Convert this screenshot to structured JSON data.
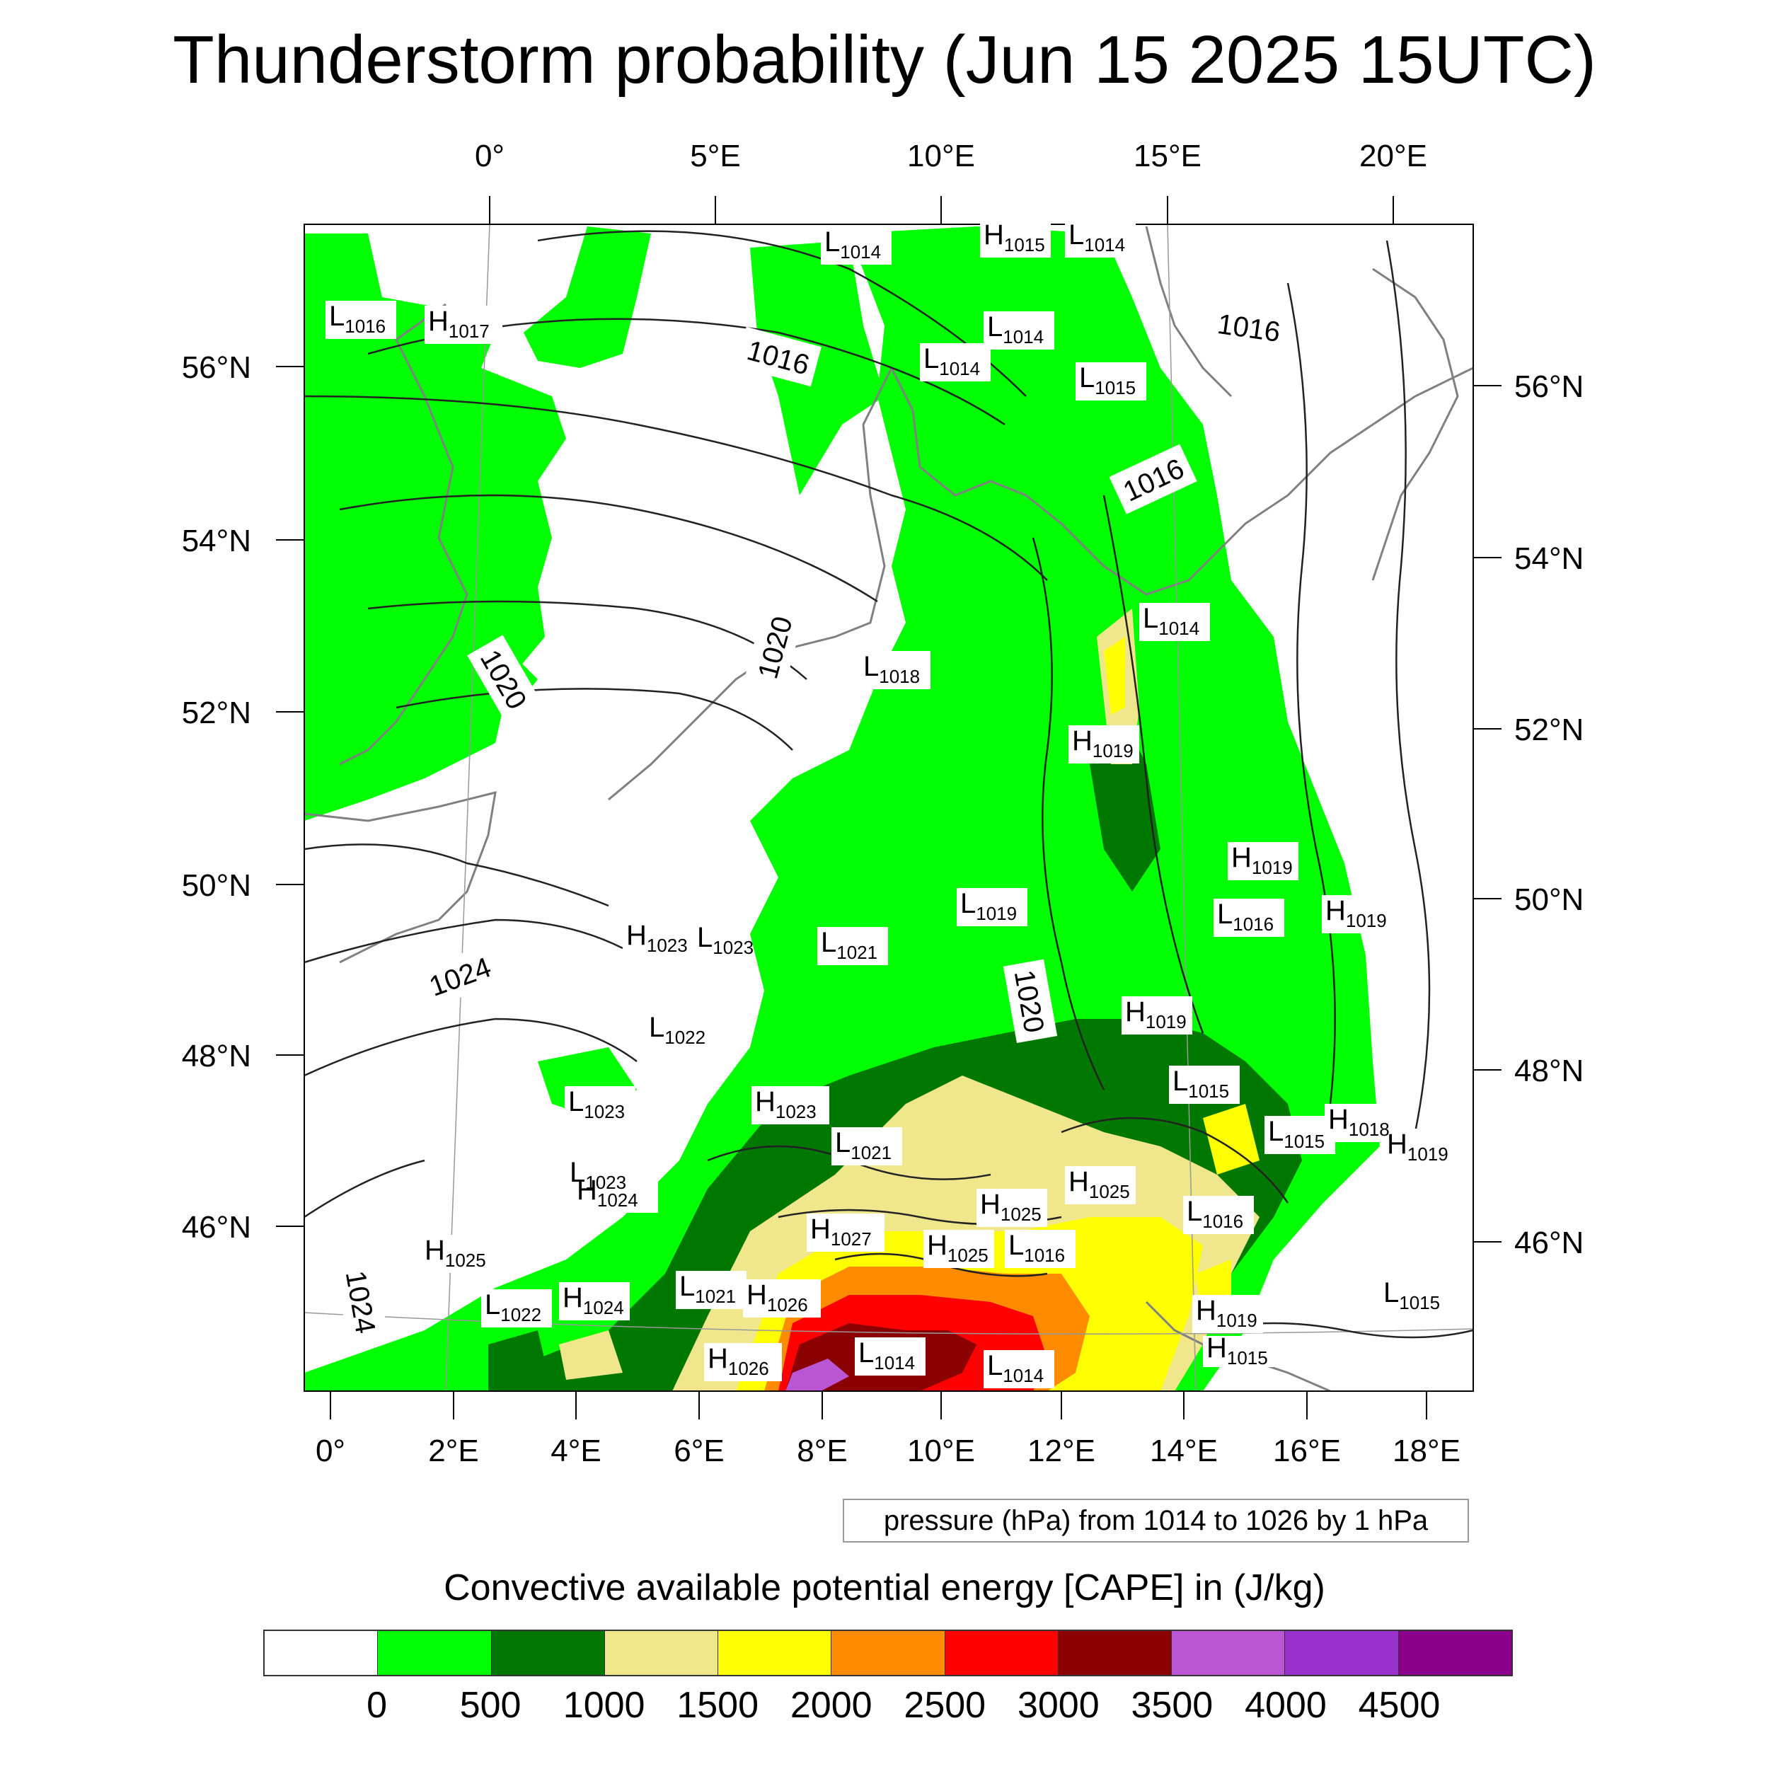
{
  "title": "Thunderstorm probability (Jun 15 2025 15UTC)",
  "axes": {
    "top_lon": [
      "0°",
      "5°E",
      "10°E",
      "15°E",
      "20°E"
    ],
    "bottom_lon": [
      "0°",
      "2°E",
      "4°E",
      "6°E",
      "8°E",
      "10°E",
      "12°E",
      "14°E",
      "16°E",
      "18°E"
    ],
    "left_lat": [
      "56°N",
      "54°N",
      "52°N",
      "50°N",
      "48°N",
      "46°N"
    ],
    "right_lat": [
      "56°N",
      "54°N",
      "52°N",
      "50°N",
      "48°N",
      "46°N"
    ]
  },
  "isobar_labels": [
    "1016",
    "1016",
    "1016",
    "1020",
    "1020",
    "1020",
    "1024",
    "1024"
  ],
  "pressure_centers": [
    {
      "type": "L",
      "value": "1014"
    },
    {
      "type": "H",
      "value": "1015"
    },
    {
      "type": "L",
      "value": "1014"
    },
    {
      "type": "L",
      "value": "1016"
    },
    {
      "type": "H",
      "value": "1017"
    },
    {
      "type": "L",
      "value": "1014"
    },
    {
      "type": "L",
      "value": "1014"
    },
    {
      "type": "L",
      "value": "1015"
    },
    {
      "type": "L",
      "value": "1014"
    },
    {
      "type": "L",
      "value": "1018"
    },
    {
      "type": "H",
      "value": "1019"
    },
    {
      "type": "H",
      "value": "1019"
    },
    {
      "type": "L",
      "value": "1016"
    },
    {
      "type": "H",
      "value": "1019"
    },
    {
      "type": "L",
      "value": "1019"
    },
    {
      "type": "H",
      "value": "1023"
    },
    {
      "type": "L",
      "value": "1023"
    },
    {
      "type": "L",
      "value": "1021"
    },
    {
      "type": "L",
      "value": "1022"
    },
    {
      "type": "H",
      "value": "1019"
    },
    {
      "type": "L",
      "value": "1015"
    },
    {
      "type": "L",
      "value": "1023"
    },
    {
      "type": "H",
      "value": "1023"
    },
    {
      "type": "L",
      "value": "1021"
    },
    {
      "type": "L",
      "value": "1023"
    },
    {
      "type": "H",
      "value": "1024"
    },
    {
      "type": "H",
      "value": "1025"
    },
    {
      "type": "H",
      "value": "1025"
    },
    {
      "type": "L",
      "value": "1016"
    },
    {
      "type": "H",
      "value": "1027"
    },
    {
      "type": "H",
      "value": "1025"
    },
    {
      "type": "L",
      "value": "1016"
    },
    {
      "type": "H",
      "value": "1025"
    },
    {
      "type": "L",
      "value": "1022"
    },
    {
      "type": "H",
      "value": "1024"
    },
    {
      "type": "L",
      "value": "1021"
    },
    {
      "type": "H",
      "value": "1026"
    },
    {
      "type": "H",
      "value": "1026"
    },
    {
      "type": "L",
      "value": "1014"
    },
    {
      "type": "L",
      "value": "1014"
    },
    {
      "type": "H",
      "value": "1019"
    },
    {
      "type": "L",
      "value": "1015"
    },
    {
      "type": "H",
      "value": "1019"
    },
    {
      "type": "H",
      "value": "1018"
    },
    {
      "type": "L",
      "value": "1015"
    },
    {
      "type": "H",
      "value": "1015"
    }
  ],
  "pressure_note": "pressure (hPa) from 1014 to 1026 by 1 hPa",
  "colorbar": {
    "title": "Convective available potential energy [CAPE] in (J/kg)",
    "colors": [
      "#ffffff",
      "#00ff00",
      "#007800",
      "#f0e68c",
      "#ffff00",
      "#ff8c00",
      "#ff0000",
      "#8b0000",
      "#ba55d3",
      "#9932cc",
      "#8b008b"
    ],
    "ticks": [
      "0",
      "500",
      "1000",
      "1500",
      "2000",
      "2500",
      "3000",
      "3500",
      "4000",
      "4500"
    ]
  }
}
